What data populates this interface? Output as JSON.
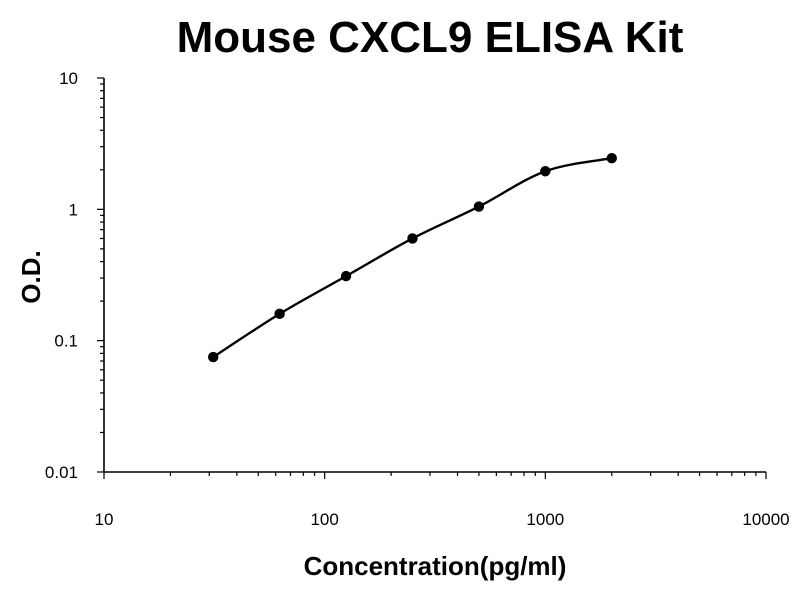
{
  "chart_data": {
    "type": "scatter",
    "title": "Mouse CXCL9 ELISA Kit",
    "xlabel": "Concentration(pg/ml)",
    "ylabel": "O.D.",
    "xscale": "log",
    "yscale": "log",
    "xlim": [
      10,
      10000
    ],
    "ylim": [
      0.01,
      10
    ],
    "x_ticks": [
      "10",
      "100",
      "1000",
      "10000"
    ],
    "y_ticks": [
      "0.01",
      "0.1",
      "1",
      "10"
    ],
    "grid": false,
    "legend": "none",
    "colors": {
      "points": "#000000",
      "curve": "#000000",
      "axis": "#000000"
    },
    "series": [
      {
        "x": [
          31.25,
          62.5,
          125,
          250,
          500,
          1000,
          2000
        ],
        "y": [
          0.075,
          0.16,
          0.31,
          0.6,
          1.05,
          1.95,
          2.45
        ],
        "fit_curve": true
      }
    ]
  }
}
